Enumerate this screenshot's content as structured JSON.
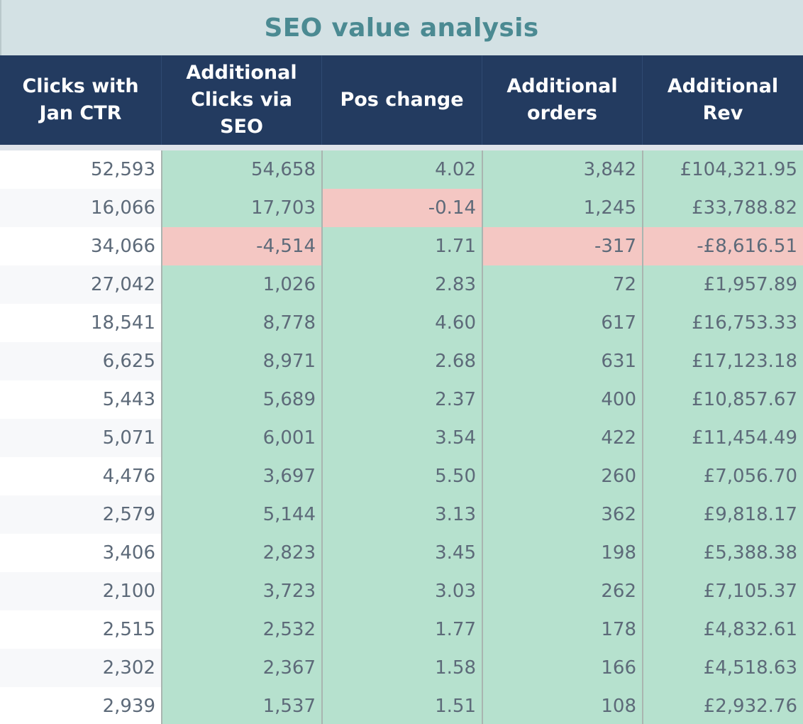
{
  "title": "SEO value analysis",
  "colors": {
    "title_bg": "#d3e1e4",
    "title_text": "#4b8a92",
    "header_bg": "#233b60",
    "positive_fill": "#b6e1ce",
    "negative_fill": "#f4c7c3",
    "cell_text": "#5d6a79"
  },
  "columns": [
    [
      "Clicks with",
      "Jan CTR"
    ],
    [
      "Additional",
      "Clicks via",
      "SEO"
    ],
    [
      "Pos change"
    ],
    [
      "Additional",
      "orders"
    ],
    [
      "Additional",
      "Rev"
    ]
  ],
  "rows": [
    [
      "52,593",
      "54,658",
      "4.02",
      "3,842",
      "£104,321.95"
    ],
    [
      "16,066",
      "17,703",
      "-0.14",
      "1,245",
      "£33,788.82"
    ],
    [
      "34,066",
      "-4,514",
      "1.71",
      "-317",
      "-£8,616.51"
    ],
    [
      "27,042",
      "1,026",
      "2.83",
      "72",
      "£1,957.89"
    ],
    [
      "18,541",
      "8,778",
      "4.60",
      "617",
      "£16,753.33"
    ],
    [
      "6,625",
      "8,971",
      "2.68",
      "631",
      "£17,123.18"
    ],
    [
      "5,443",
      "5,689",
      "2.37",
      "400",
      "£10,857.67"
    ],
    [
      "5,071",
      "6,001",
      "3.54",
      "422",
      "£11,454.49"
    ],
    [
      "4,476",
      "3,697",
      "5.50",
      "260",
      "£7,056.70"
    ],
    [
      "2,579",
      "5,144",
      "3.13",
      "362",
      "£9,818.17"
    ],
    [
      "3,406",
      "2,823",
      "3.45",
      "198",
      "£5,388.38"
    ],
    [
      "2,100",
      "3,723",
      "3.03",
      "262",
      "£7,105.37"
    ],
    [
      "2,515",
      "2,532",
      "1.77",
      "178",
      "£4,832.61"
    ],
    [
      "2,302",
      "2,367",
      "1.58",
      "166",
      "£4,518.63"
    ],
    [
      "2,939",
      "1,537",
      "1.51",
      "108",
      "£2,932.76"
    ]
  ]
}
